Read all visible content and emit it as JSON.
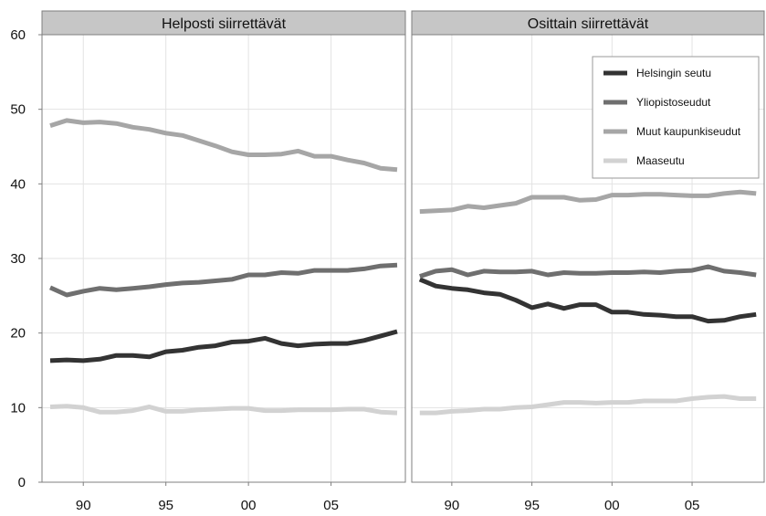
{
  "chart_data": {
    "type": "line",
    "ylim": [
      0,
      60
    ],
    "yticks": [
      0,
      10,
      20,
      30,
      40,
      50,
      60
    ],
    "xlim": [
      1987.5,
      2009.5
    ],
    "xticks": [
      1990,
      1995,
      2000,
      2005
    ],
    "xtick_labels": [
      "90",
      "95",
      "00",
      "05"
    ],
    "grid": true,
    "legend_position": "top-right of right panel",
    "x": [
      1988,
      1989,
      1990,
      1991,
      1992,
      1993,
      1994,
      1995,
      1996,
      1997,
      1998,
      1999,
      2000,
      2001,
      2002,
      2003,
      2004,
      2005,
      2006,
      2007,
      2008,
      2009
    ],
    "legend": [
      {
        "name": "Helsingin seutu",
        "color": "#333333"
      },
      {
        "name": "Yliopistoseudut",
        "color": "#6f6f6f"
      },
      {
        "name": "Muut kaupunkiseudut",
        "color": "#a6a6a6"
      },
      {
        "name": "Maaseutu",
        "color": "#d2d2d2"
      }
    ],
    "panels": [
      {
        "title": "Helposti siirrettävät",
        "series": [
          {
            "name": "Helsingin seutu",
            "values": [
              16.3,
              16.4,
              16.3,
              16.5,
              17.0,
              17.0,
              16.8,
              17.5,
              17.7,
              18.1,
              18.3,
              18.8,
              18.9,
              19.3,
              18.6,
              18.3,
              18.5,
              18.6,
              18.6,
              19.0,
              19.6,
              20.2
            ]
          },
          {
            "name": "Yliopistoseudut",
            "values": [
              26.1,
              25.1,
              25.6,
              26.0,
              25.8,
              26.0,
              26.2,
              26.5,
              26.7,
              26.8,
              27.0,
              27.2,
              27.8,
              27.8,
              28.1,
              28.0,
              28.4,
              28.4,
              28.4,
              28.6,
              29.0,
              29.1
            ]
          },
          {
            "name": "Muut kaupunkiseudut",
            "values": [
              47.8,
              48.5,
              48.2,
              48.3,
              48.1,
              47.6,
              47.3,
              46.8,
              46.5,
              45.8,
              45.1,
              44.3,
              43.9,
              43.9,
              44.0,
              44.4,
              43.7,
              43.7,
              43.2,
              42.8,
              42.1,
              41.9
            ]
          },
          {
            "name": "Maaseutu",
            "values": [
              10.1,
              10.2,
              10.0,
              9.4,
              9.4,
              9.6,
              10.1,
              9.5,
              9.5,
              9.7,
              9.8,
              9.9,
              9.9,
              9.6,
              9.6,
              9.7,
              9.7,
              9.7,
              9.8,
              9.8,
              9.4,
              9.3
            ]
          }
        ]
      },
      {
        "title": "Osittain siirrettävät",
        "series": [
          {
            "name": "Helsingin seutu",
            "values": [
              27.2,
              26.3,
              26.0,
              25.8,
              25.4,
              25.2,
              24.4,
              23.4,
              23.9,
              23.3,
              23.8,
              23.8,
              22.8,
              22.8,
              22.5,
              22.4,
              22.2,
              22.2,
              21.6,
              21.7,
              22.2,
              22.5
            ]
          },
          {
            "name": "Yliopistoseudut",
            "values": [
              27.6,
              28.3,
              28.5,
              27.8,
              28.3,
              28.2,
              28.2,
              28.3,
              27.8,
              28.1,
              28.0,
              28.0,
              28.1,
              28.1,
              28.2,
              28.1,
              28.3,
              28.4,
              28.9,
              28.3,
              28.1,
              27.8
            ]
          },
          {
            "name": "Muut kaupunkiseudut",
            "values": [
              36.3,
              36.4,
              36.5,
              37.0,
              36.8,
              37.1,
              37.4,
              38.2,
              38.2,
              38.2,
              37.8,
              37.9,
              38.5,
              38.5,
              38.6,
              38.6,
              38.5,
              38.4,
              38.4,
              38.7,
              38.9,
              38.7
            ]
          },
          {
            "name": "Maaseutu",
            "values": [
              9.3,
              9.3,
              9.5,
              9.6,
              9.8,
              9.8,
              10.0,
              10.1,
              10.4,
              10.7,
              10.7,
              10.6,
              10.7,
              10.7,
              10.9,
              10.9,
              10.9,
              11.2,
              11.4,
              11.5,
              11.2,
              11.2
            ]
          }
        ]
      }
    ]
  }
}
